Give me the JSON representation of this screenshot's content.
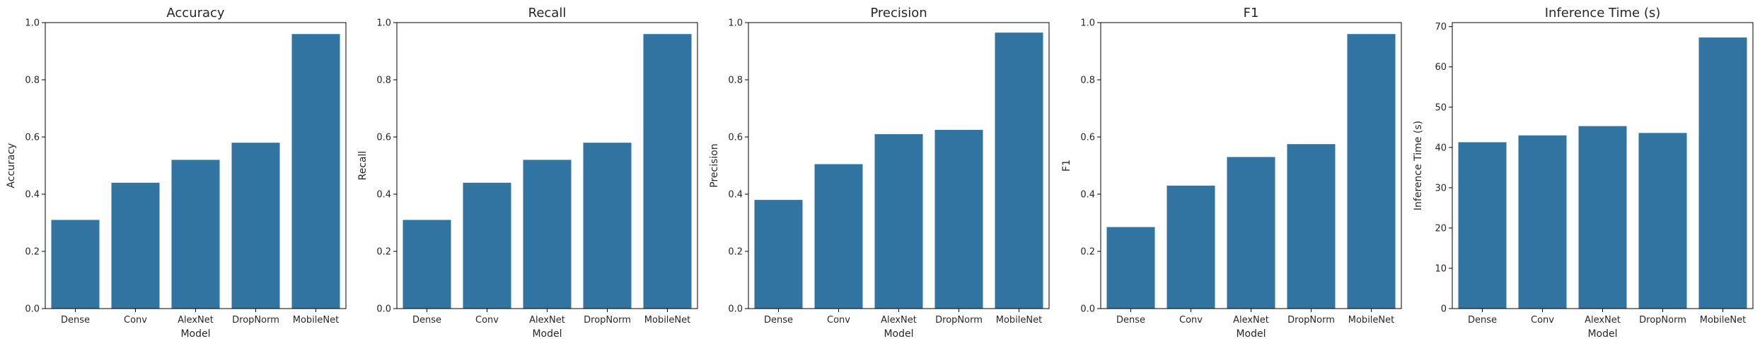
{
  "colors": {
    "bar": "#3274a1"
  },
  "chart_data": [
    {
      "type": "bar",
      "title": "Accuracy",
      "xlabel": "",
      "ylabel": "Accuracy",
      "categories": [
        "Dense",
        "Conv",
        "AlexNet",
        "DropNorm",
        "MobileNet"
      ],
      "values": [
        0.31,
        0.44,
        0.52,
        0.58,
        0.96
      ],
      "ylim": [
        0,
        1.0
      ],
      "yticks": [
        "0.0",
        "0.2",
        "0.4",
        "0.6",
        "0.8",
        "1.0"
      ],
      "grid": false
    },
    {
      "type": "bar",
      "title": "Recall",
      "xlabel": "",
      "ylabel": "Recall",
      "categories": [
        "Dense",
        "Conv",
        "AlexNet",
        "DropNorm",
        "MobileNet"
      ],
      "values": [
        0.31,
        0.44,
        0.52,
        0.58,
        0.96
      ],
      "ylim": [
        0,
        1.0
      ],
      "yticks": [
        "0.0",
        "0.2",
        "0.4",
        "0.6",
        "0.8",
        "1.0"
      ],
      "grid": false
    },
    {
      "type": "bar",
      "title": "Precision",
      "xlabel": "",
      "ylabel": "Precision",
      "categories": [
        "Dense",
        "Conv",
        "AlexNet",
        "DropNorm",
        "MobileNet"
      ],
      "values": [
        0.38,
        0.505,
        0.61,
        0.625,
        0.965
      ],
      "ylim": [
        0,
        1.0
      ],
      "yticks": [
        "0.0",
        "0.2",
        "0.4",
        "0.6",
        "0.8",
        "1.0"
      ],
      "grid": false
    },
    {
      "type": "bar",
      "title": "F1",
      "xlabel": "",
      "ylabel": "F1",
      "categories": [
        "Dense",
        "Conv",
        "AlexNet",
        "DropNorm",
        "MobileNet"
      ],
      "values": [
        0.285,
        0.43,
        0.53,
        0.575,
        0.96
      ],
      "ylim": [
        0,
        1.0
      ],
      "yticks": [
        "0.0",
        "0.2",
        "0.4",
        "0.6",
        "0.8",
        "1.0"
      ],
      "grid": false
    },
    {
      "type": "bar",
      "title": "Inference Time (s)",
      "xlabel": "Model",
      "ylabel": "Inference Time (s)",
      "categories": [
        "Dense",
        "Conv",
        "AlexNet",
        "DropNorm",
        "MobileNet"
      ],
      "values": [
        41.3,
        43.0,
        45.3,
        43.6,
        67.3
      ],
      "ylim": [
        0,
        71
      ],
      "yticks": [
        "0",
        "10",
        "20",
        "30",
        "40",
        "50",
        "60",
        "70"
      ],
      "grid": false
    }
  ],
  "shared_xlabel": "Model"
}
